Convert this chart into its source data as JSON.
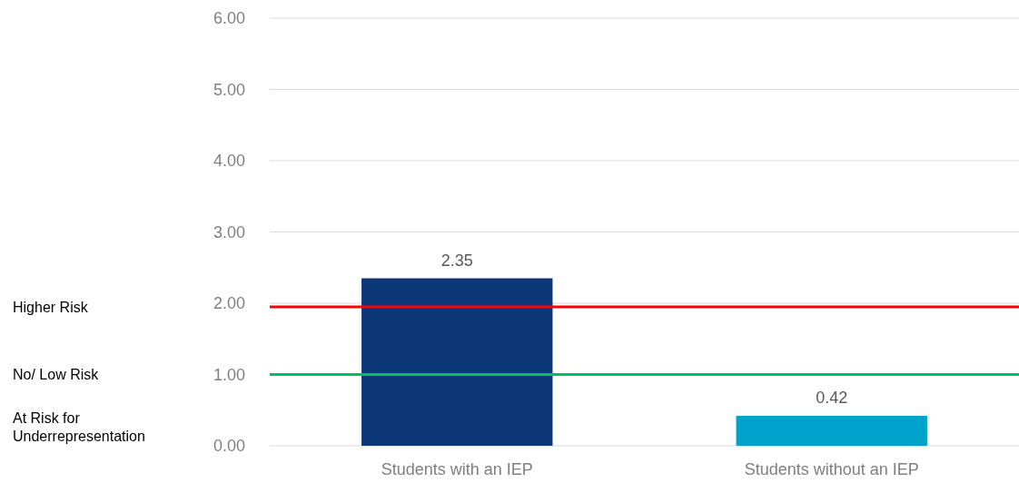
{
  "chart_data": {
    "type": "bar",
    "categories": [
      "Students with an IEP",
      "Students without an IEP"
    ],
    "values": [
      2.35,
      0.42
    ],
    "colors": [
      "#0b3778",
      "#00a3cc"
    ],
    "data_labels": true,
    "ylim": [
      0,
      6
    ],
    "yticks": [
      {
        "value": 0,
        "label": "0.00"
      },
      {
        "value": 1,
        "label": "1.00"
      },
      {
        "value": 2,
        "label": "2.00"
      },
      {
        "value": 3,
        "label": "3.00"
      },
      {
        "value": 4,
        "label": "4.00"
      },
      {
        "value": 5,
        "label": "5.00"
      },
      {
        "value": 6,
        "label": "6.00"
      }
    ],
    "grid": "y",
    "ref_lines": [
      {
        "axis": "y",
        "value": 1.95,
        "color": "#ff0000"
      },
      {
        "axis": "y",
        "value": 1,
        "color": "#00c060"
      }
    ],
    "annotations": [
      "Higher Risk",
      "No/ Low Risk",
      "At Risk for Underrepresentation"
    ]
  }
}
